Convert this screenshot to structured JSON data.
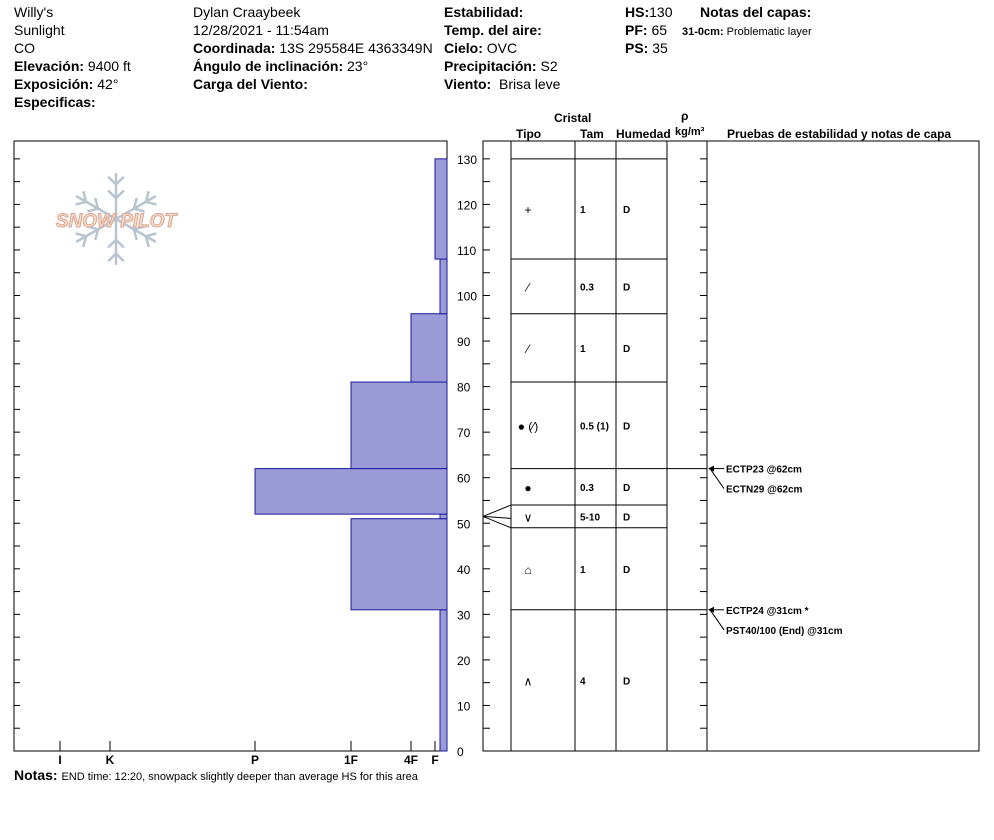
{
  "header": {
    "location": "Willy's",
    "region": "Sunlight",
    "state": "CO",
    "elevation_label": "Elevación:",
    "elevation_value": "9400 ft",
    "aspect_label": "Exposición:",
    "aspect_value": "42°",
    "specifics_label": "Especificas:",
    "observer": "Dylan Craaybeek",
    "datetime": "12/28/2021 - 11:54am",
    "coord_label": "Coordinada:",
    "coord_value": "13S 295584E 4363349N",
    "slope_label": "Ángulo de inclinación:",
    "slope_value": "23°",
    "wind_load_label": "Carga del Viento:",
    "stability_label": "Estabilidad:",
    "air_temp_label": "Temp. del aire:",
    "sky_label": "Cielo:",
    "sky_value": "OVC",
    "precip_label": "Precipitación:",
    "precip_value": "S2",
    "wind_label": "Viento:",
    "wind_value": "Brisa leve",
    "hs_label": "HS:",
    "hs_value": "130",
    "pf_label": "PF:",
    "pf_value": "65",
    "ps_label": "PS:",
    "ps_value": "35",
    "layer_notes_label": "Notas del capas:",
    "layer_note_depth": "31-0cm:",
    "layer_note_text": "Problematic layer"
  },
  "logo_text": "SNOW PILOT",
  "columns": {
    "crystal": "Cristal",
    "type": "Tipo",
    "size": "Tam",
    "humidity": "Humedad",
    "rho": "ρ",
    "density_unit": "kg/m³",
    "tests": "Pruebas de estabilidad y notas de capa"
  },
  "notes": {
    "label": "Notas:",
    "text": "END time: 12:20, snowpack slightly deeper than average HS for this area"
  },
  "chart_data": {
    "type": "bar",
    "description_axis": "snow height (cm)",
    "ylim": [
      0,
      130
    ],
    "ytick_values": [
      0,
      10,
      20,
      30,
      40,
      50,
      60,
      70,
      80,
      90,
      100,
      110,
      120,
      130
    ],
    "hardness_ticks": [
      "I",
      "K",
      "P",
      "1F",
      "4F",
      "F"
    ],
    "hardness_profile": [
      {
        "bottom": 0,
        "top": 31,
        "hardness": "F+"
      },
      {
        "bottom": 31,
        "top": 51,
        "hardness": "1F"
      },
      {
        "bottom": 51,
        "top": 52,
        "hardness": "F+"
      },
      {
        "bottom": 52,
        "top": 62,
        "hardness": "P"
      },
      {
        "bottom": 62,
        "top": 81,
        "hardness": "1F"
      },
      {
        "bottom": 81,
        "top": 96,
        "hardness": "4F"
      },
      {
        "bottom": 96,
        "top": 108,
        "hardness": "F+"
      },
      {
        "bottom": 108,
        "top": 130,
        "hardness": "F"
      }
    ],
    "layers": [
      {
        "bottom": 108,
        "top": 130,
        "type": "+",
        "size": "1",
        "humidity": "D"
      },
      {
        "bottom": 96,
        "top": 108,
        "type": "⁄",
        "size": "0.3",
        "humidity": "D"
      },
      {
        "bottom": 81,
        "top": 96,
        "type": "⁄",
        "size": "1",
        "humidity": "D"
      },
      {
        "bottom": 62,
        "top": 81,
        "type": "● (⁄)",
        "size": "0.5 (1)",
        "humidity": "D"
      },
      {
        "bottom": 54,
        "top": 62,
        "type": "●",
        "size": "0.3",
        "humidity": "D"
      },
      {
        "bottom": 49,
        "top": 54,
        "type": "∨",
        "size": "5-10",
        "humidity": "D"
      },
      {
        "bottom": 31,
        "top": 49,
        "type": "⌂",
        "size": "1",
        "humidity": "D"
      },
      {
        "bottom": 0,
        "top": 31,
        "type": "∧",
        "size": "4",
        "humidity": "D"
      }
    ],
    "tests": [
      {
        "depth": 62,
        "lines": [
          "ECTP23 @62cm",
          "ECTN29 @62cm"
        ]
      },
      {
        "depth": 31,
        "lines": [
          "ECTP24 @31cm  *",
          "PST40/100 (End) @31cm"
        ]
      }
    ]
  }
}
